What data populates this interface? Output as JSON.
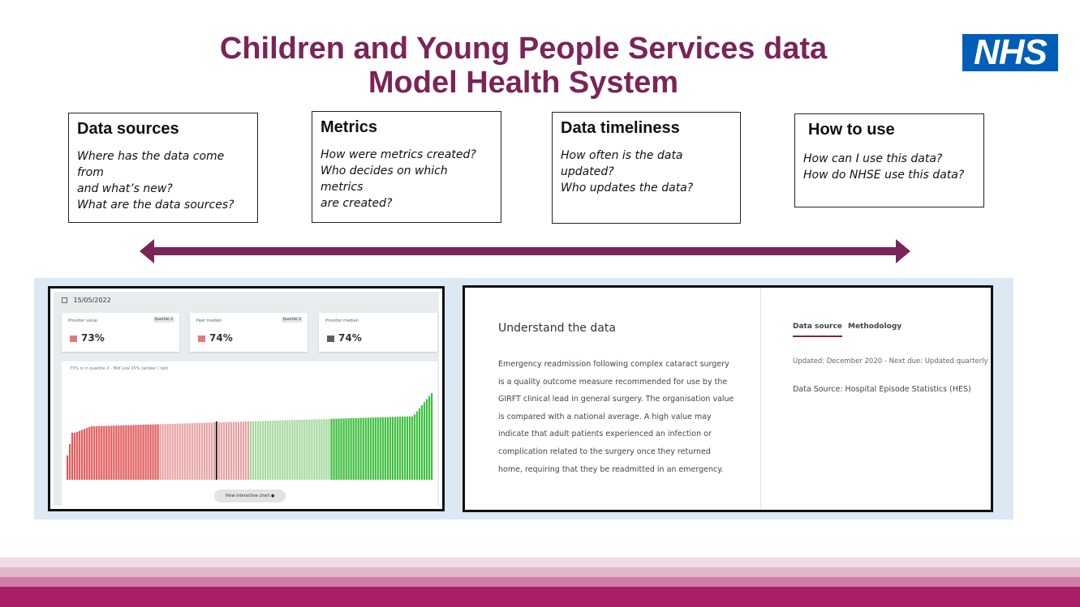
{
  "title": {
    "line1": "Children and Young People Services data",
    "line2": "Model Health System"
  },
  "logo": {
    "text": "NHS"
  },
  "boxes": [
    {
      "heading": "Data sources",
      "lines": [
        "Where has the data come from",
        "and what’s new?",
        "What are the data sources?"
      ]
    },
    {
      "heading": "Metrics",
      "lines": [
        "How were metrics created?",
        "Who decides on which metrics",
        "are created?"
      ]
    },
    {
      "heading": "Data timeliness",
      "lines": [
        "How often is the data",
        "updated?",
        "Who updates the data?"
      ]
    },
    {
      "heading": "How to use",
      "lines": [
        "How can I use this data?",
        "How do NHSE use this data?"
      ]
    }
  ],
  "colors": {
    "brand": "#7b2458",
    "nhs_blue": "#005eb8",
    "red": "#e05a5a",
    "light_red": "#e8a3a3",
    "light_green": "#a6d9a0",
    "green": "#3fbf3f",
    "grey": "#5a5f66"
  },
  "dashboard": {
    "date": "15/05/2022",
    "stats": [
      {
        "label": "Provider value",
        "quartile": "Quartile 2",
        "value": "73%",
        "color": "#e07a7a"
      },
      {
        "label": "Peer median",
        "quartile": "Quartile 2",
        "value": "74%",
        "color": "#e07a7a"
      },
      {
        "label": "Provider median",
        "quartile": "",
        "value": "74%",
        "color": "#5a5f66"
      }
    ],
    "chart_caption": "73% is in quartile 2 - Mid Low 25% (amber / red)",
    "button": "View interactive chart"
  },
  "chart_data": {
    "type": "bar",
    "title": "",
    "xlabel": "",
    "ylabel": "",
    "series_count": 150,
    "ylim": [
      0,
      100
    ],
    "quartile_groups": [
      "red",
      "light_red",
      "light_green",
      "green"
    ],
    "highlight": "provider (73%)",
    "grid": false
  },
  "understand": {
    "title": "Understand the data",
    "body_lines": [
      "Emergency readmission following complex cataract surgery",
      "is a quality outcome measure recommended for use by the",
      "GIRFT clinical lead in general surgery. The organisation value",
      "is compared with a national average. A high value may",
      "indicate that adult patients experienced an infection or",
      "complication related to the surgery once they returned",
      "home, requiring that they be readmitted in an emergency."
    ],
    "tabs": [
      "Data source",
      "Methodology"
    ],
    "updated": "Updated: December 2020 - Next due: Updated quarterly",
    "source": "Data Source: Hospital Episode Statistics  (HES)"
  }
}
